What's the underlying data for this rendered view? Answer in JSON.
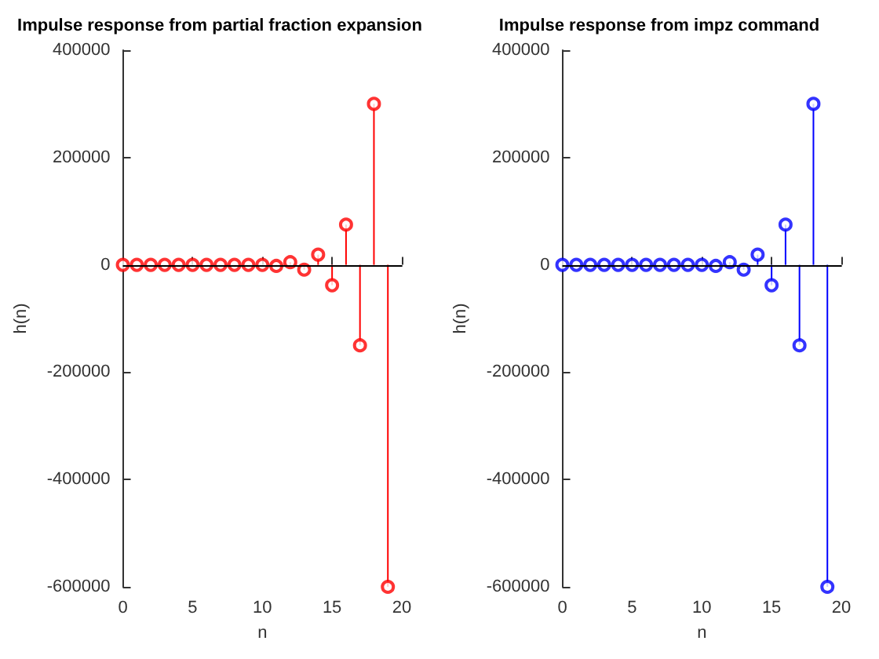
{
  "chart_data": [
    {
      "type": "lollipop",
      "title": "Impulse response from partial fraction expansion",
      "xlabel": "n",
      "ylabel": "h(n)",
      "x": [
        0,
        1,
        2,
        3,
        4,
        5,
        6,
        7,
        8,
        9,
        10,
        11,
        12,
        13,
        14,
        15,
        16,
        17,
        18,
        19
      ],
      "series": [
        {
          "color": "#ff0000",
          "values": [
            0,
            0,
            0,
            0,
            0,
            0,
            0,
            0,
            0,
            0,
            0,
            -2000,
            5000,
            -9000,
            19000,
            -38000,
            75000,
            -150000,
            300000,
            -600000
          ]
        }
      ],
      "xlim": [
        0,
        20
      ],
      "xticks": [
        0,
        5,
        10,
        15,
        20
      ],
      "ylim": [
        -600000,
        400000
      ],
      "yticks": [
        -600000,
        -400000,
        -200000,
        0,
        200000,
        400000
      ],
      "marker": "circle",
      "grid": false
    },
    {
      "type": "lollipop",
      "title": "Impulse response from impz command",
      "xlabel": "n",
      "ylabel": "h(n)",
      "x": [
        0,
        1,
        2,
        3,
        4,
        5,
        6,
        7,
        8,
        9,
        10,
        11,
        12,
        13,
        14,
        15,
        16,
        17,
        18,
        19
      ],
      "series": [
        {
          "color": "#0000ff",
          "values": [
            0,
            0,
            0,
            0,
            0,
            0,
            0,
            0,
            0,
            0,
            0,
            -2000,
            5000,
            -9000,
            19000,
            -38000,
            75000,
            -150000,
            300000,
            -600000
          ]
        }
      ],
      "xlim": [
        0,
        20
      ],
      "xticks": [
        0,
        5,
        10,
        15,
        20
      ],
      "ylim": [
        -600000,
        400000
      ],
      "yticks": [
        -600000,
        -400000,
        -200000,
        0,
        200000,
        400000
      ],
      "marker": "circle",
      "grid": false
    }
  ]
}
